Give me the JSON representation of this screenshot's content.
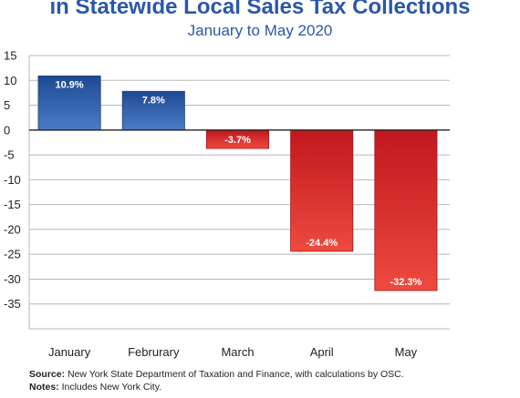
{
  "chart_data": {
    "type": "bar",
    "title": "in Statewide Local Sales Tax Collections",
    "subtitle": "January to May 2020",
    "categories": [
      "January",
      "Februrary",
      "March",
      "April",
      "May"
    ],
    "values": [
      10.9,
      7.8,
      -3.7,
      -24.4,
      -32.3
    ],
    "data_labels": [
      "10.9%",
      "7.8%",
      "-3.7%",
      "-24.4%",
      "-32.3%"
    ],
    "ylim": [
      -40,
      15
    ],
    "yticks": [
      15,
      10,
      5,
      0,
      -5,
      -10,
      -15,
      -20,
      -25,
      -30,
      -35
    ],
    "grid": true,
    "xlabel": "",
    "ylabel": "",
    "colors": {
      "positive": "#2f5fa8",
      "negative": "#d42a2f"
    }
  },
  "footer": {
    "source_label": "Source:",
    "source_text": " New York State Department of Taxation and Finance, with calculations by OSC.",
    "notes_label": "Notes:",
    "notes_text": " Includes New York City."
  }
}
